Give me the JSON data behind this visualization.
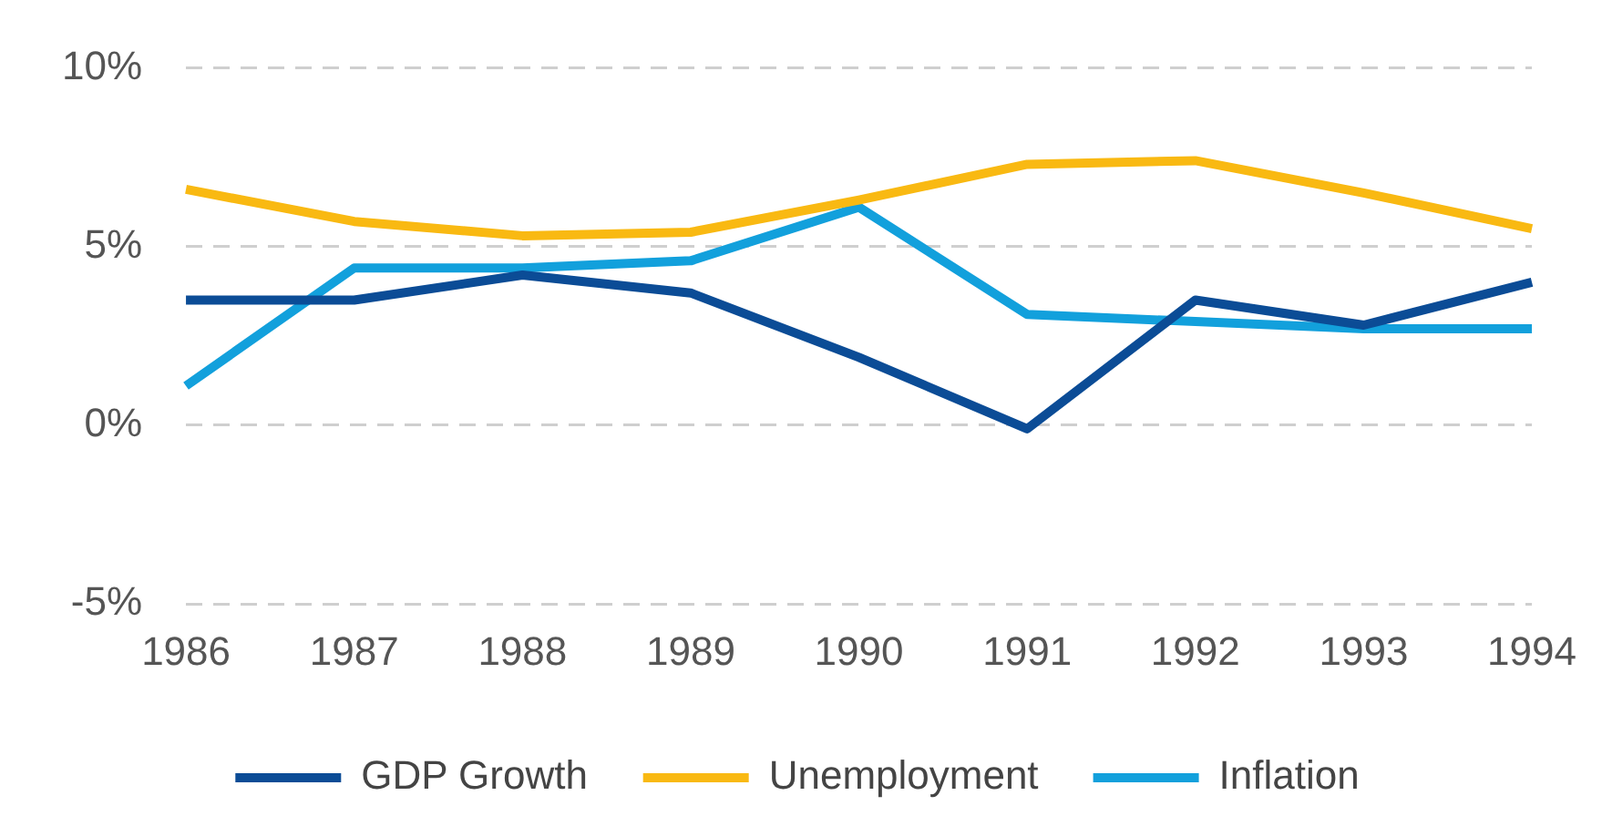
{
  "chart_data": {
    "type": "line",
    "categories": [
      "1986",
      "1987",
      "1988",
      "1989",
      "1990",
      "1991",
      "1992",
      "1993",
      "1994"
    ],
    "series": [
      {
        "name": "GDP Growth",
        "color": "#0b4c96",
        "values": [
          3.5,
          3.5,
          4.2,
          3.7,
          1.9,
          -0.1,
          3.5,
          2.8,
          4.0
        ]
      },
      {
        "name": "Unemployment",
        "color": "#f9b912",
        "values": [
          6.6,
          5.7,
          5.3,
          5.4,
          6.3,
          7.3,
          7.4,
          6.5,
          5.5
        ]
      },
      {
        "name": "Inflation",
        "color": "#12a0dc",
        "values": [
          1.1,
          4.4,
          4.4,
          4.6,
          6.1,
          3.1,
          2.9,
          2.7,
          2.7
        ]
      }
    ],
    "ylim": [
      -5,
      10
    ],
    "yticks": [
      {
        "value": -5,
        "label": "-5%"
      },
      {
        "value": 0,
        "label": "0%"
      },
      {
        "value": 5,
        "label": "5%"
      },
      {
        "value": 10,
        "label": "10%"
      }
    ],
    "grid": "y",
    "legend": "bottom",
    "marker": "none",
    "line_style": "solid"
  }
}
